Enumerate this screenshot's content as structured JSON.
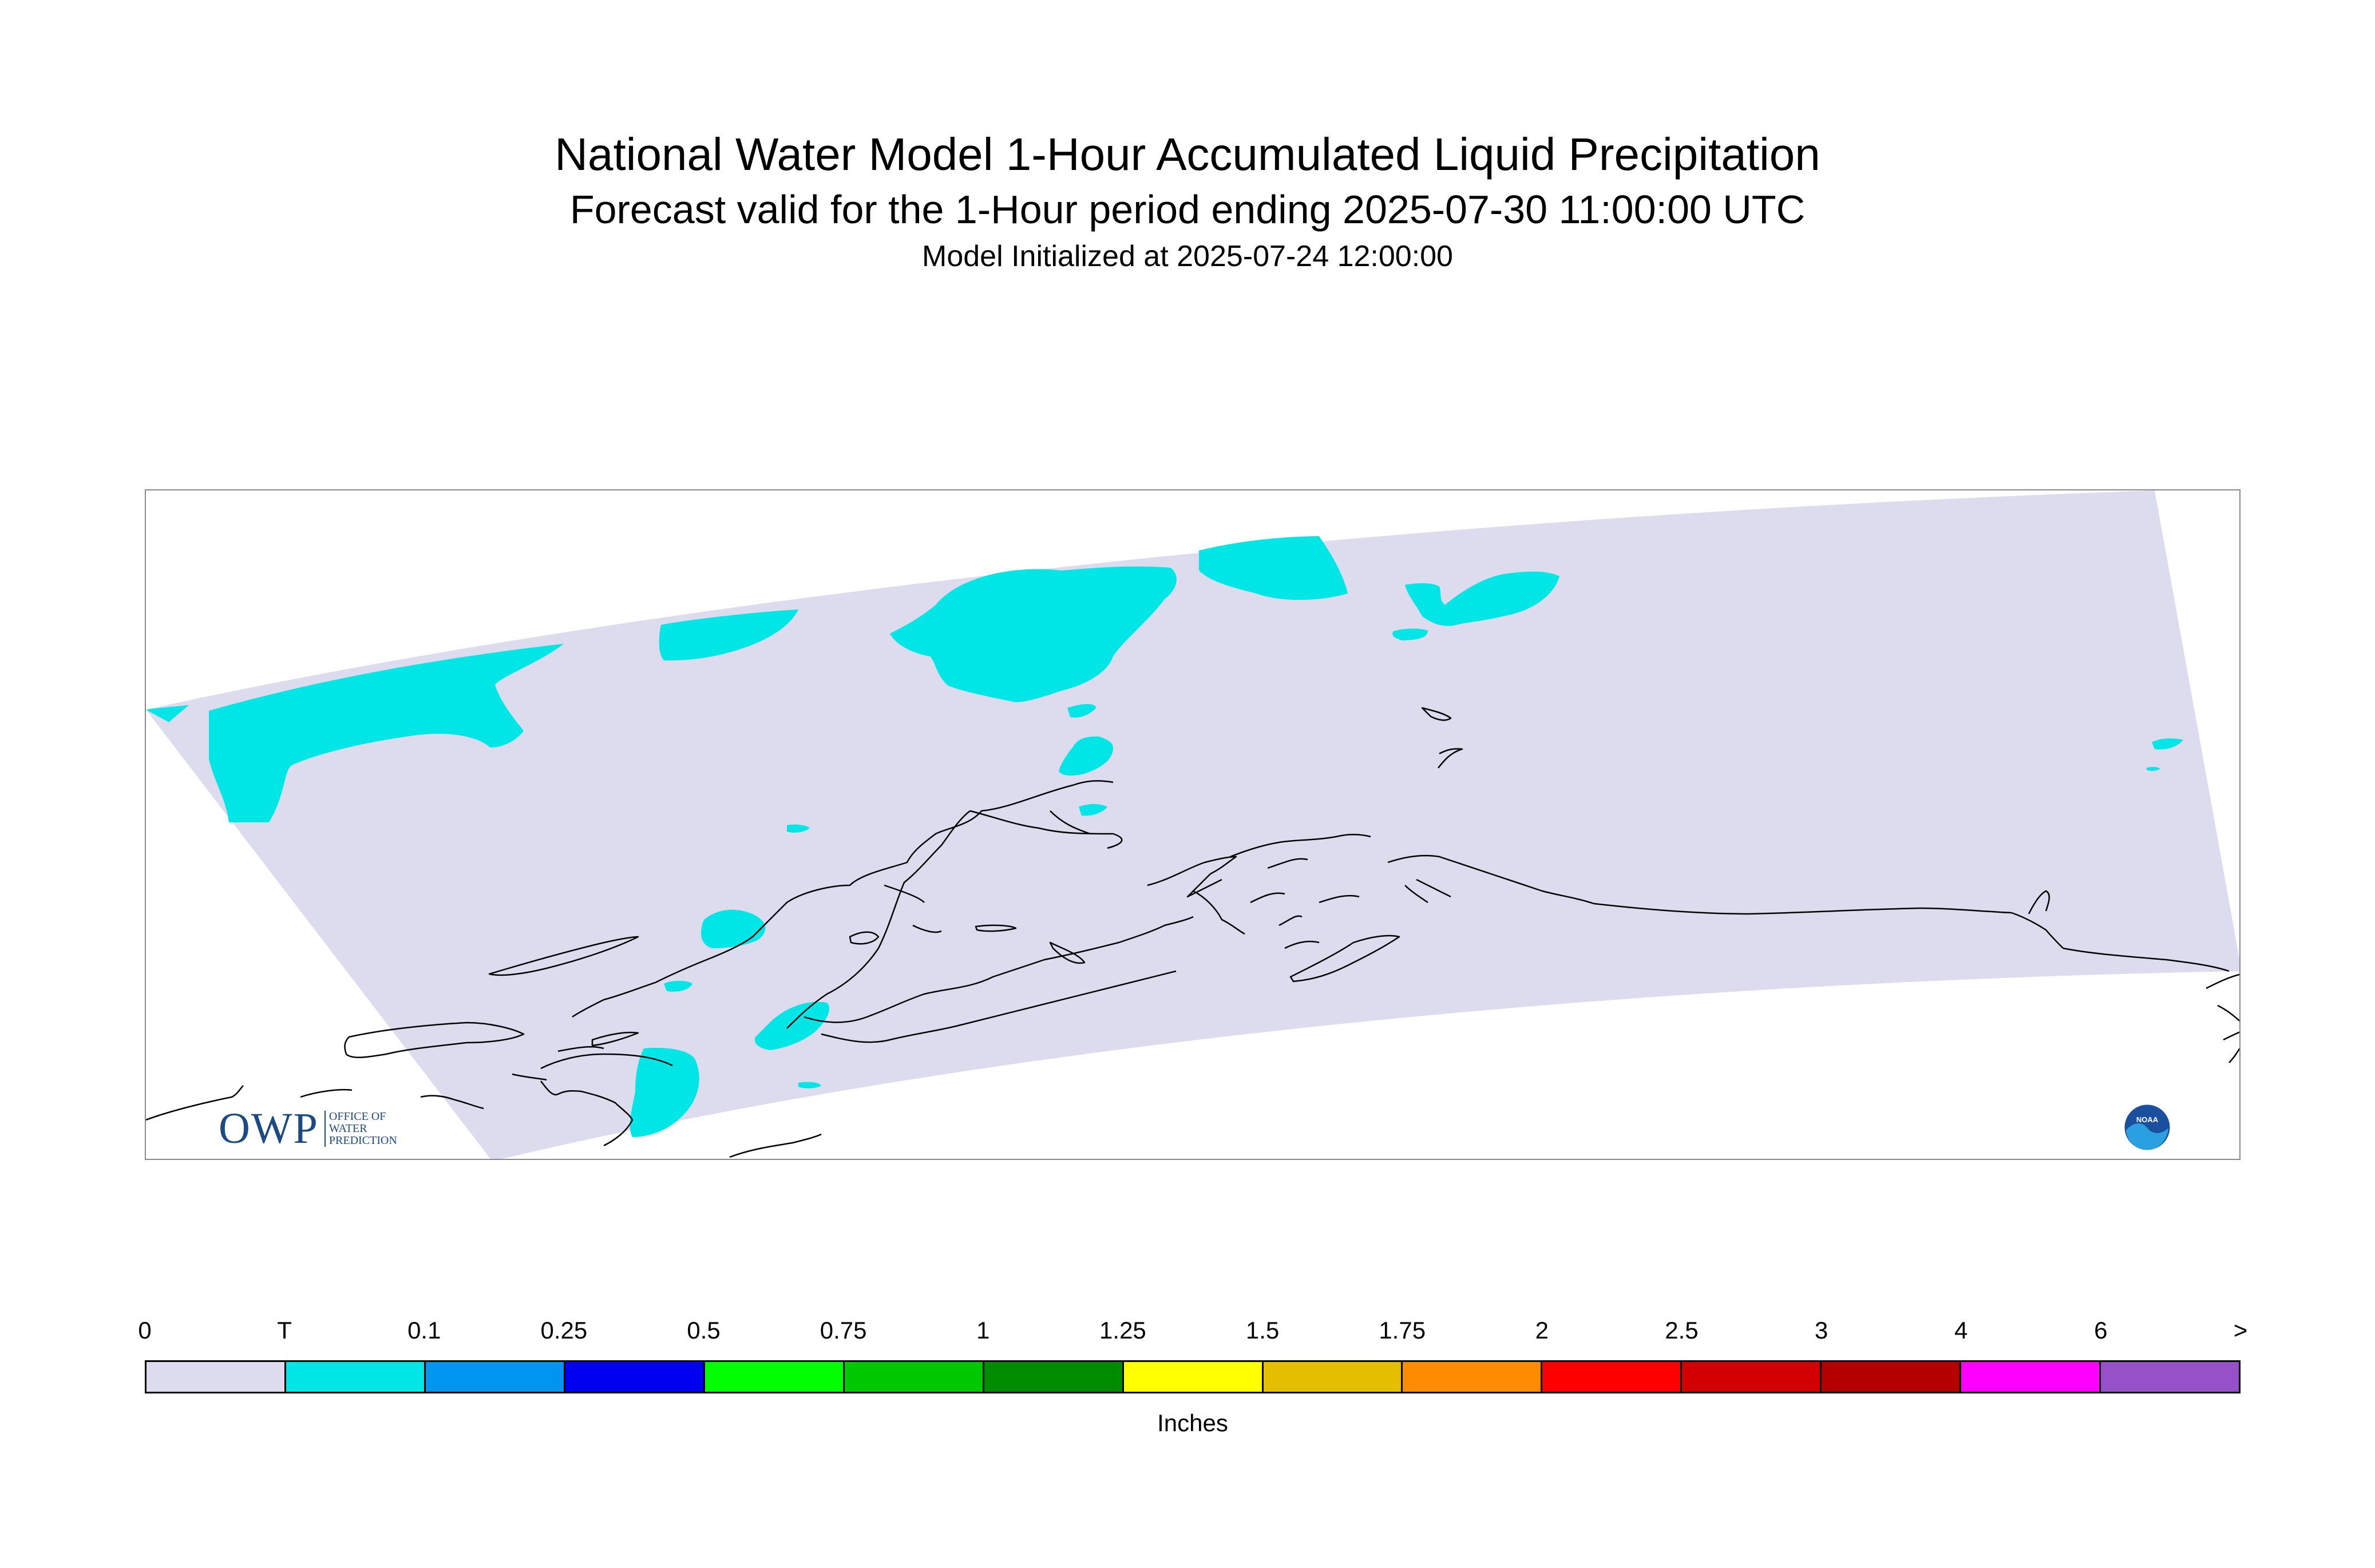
{
  "title": {
    "main": "National Water Model 1-Hour Accumulated Liquid Precipitation",
    "subtitle": "Forecast valid for the 1-Hour period ending 2025-07-30 11:00:00 UTC",
    "init": "Model Initialized at 2025-07-24 12:00:00"
  },
  "map": {
    "region": "Alaska",
    "domain_color": "#dcdcee",
    "precip_color": "#00e6e6",
    "coastline_color": "#000000",
    "logos": {
      "owp": {
        "letters": "OWP",
        "line1": "OFFICE OF",
        "line2": "WATER",
        "line3": "PREDICTION"
      },
      "noaa": {
        "text": "NOAA",
        "icon": "noaa-logo-icon"
      }
    }
  },
  "legend": {
    "units": "Inches",
    "labels": [
      "0",
      "T",
      "0.1",
      "0.25",
      "0.5",
      "0.75",
      "1",
      "1.25",
      "1.5",
      "1.75",
      "2",
      "2.5",
      "3",
      "4",
      "6",
      ">"
    ],
    "colors": [
      "#dcdcee",
      "#00e6e6",
      "#0096f0",
      "#0000f0",
      "#00ff00",
      "#00c800",
      "#008c00",
      "#ffff00",
      "#e6be00",
      "#ff8c00",
      "#ff0000",
      "#d20000",
      "#b40000",
      "#ff00ff",
      "#9650c8"
    ]
  }
}
